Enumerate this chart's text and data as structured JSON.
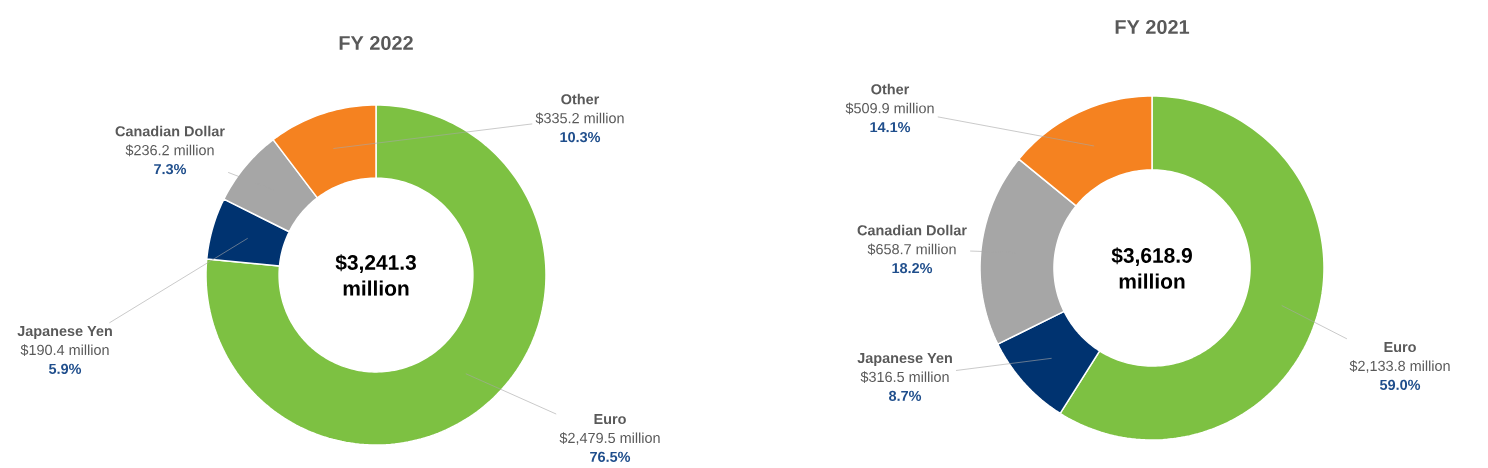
{
  "chart_data": [
    {
      "type": "donut",
      "title": "FY 2022",
      "categories": [
        "Euro",
        "Japanese Yen",
        "Canadian Dollar",
        "Other"
      ],
      "values": [
        2479.5,
        190.4,
        236.2,
        335.2
      ],
      "colors": [
        "#7dc142",
        "#003370",
        "#a6a6a6",
        "#f58220"
      ],
      "value_labels": [
        "$2,479.5 million",
        "$190.4 million",
        "$236.2 million",
        "$335.2 million"
      ],
      "annotations": [
        "$3,241.3 million",
        "76.5%",
        "5.9%",
        "7.3%",
        "10.3%"
      ]
    },
    {
      "type": "donut",
      "title": "FY 2021",
      "categories": [
        "Euro",
        "Japanese Yen",
        "Canadian Dollar",
        "Other"
      ],
      "values": [
        2133.8,
        316.5,
        658.7,
        509.9
      ],
      "colors": [
        "#7dc142",
        "#003370",
        "#a6a6a6",
        "#f58220"
      ],
      "value_labels": [
        "$2,133.8 million",
        "$316.5 million",
        "$658.7 million",
        "$509.9 million"
      ],
      "annotations": [
        "$3,618.9 million",
        "59.0%",
        "8.7%",
        "18.2%",
        "14.1%"
      ]
    }
  ]
}
